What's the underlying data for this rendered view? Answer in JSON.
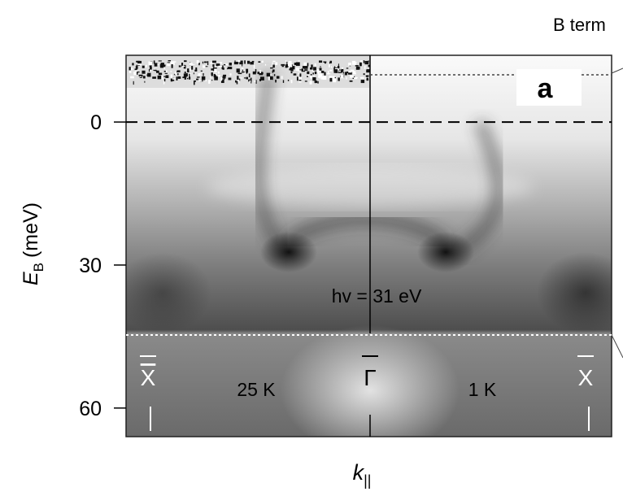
{
  "figure": {
    "corner_text": "B term",
    "panel_label": "a",
    "annotation": "hv = 31 eV",
    "left_temperature": "25 K",
    "right_temperature": "1 K",
    "left_point": "X",
    "center_point": "Γ",
    "right_point": "X",
    "y_axis": {
      "symbol": "E",
      "subscript": "B",
      "unit": "(meV)",
      "range": [
        -14,
        66
      ],
      "ticks": [
        0,
        30,
        60
      ]
    },
    "x_axis": {
      "symbol": "k",
      "subscript": "||"
    }
  }
}
